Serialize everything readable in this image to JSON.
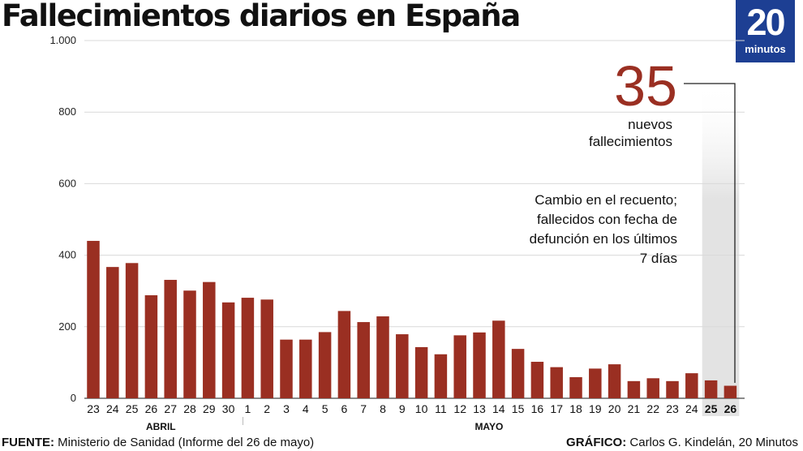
{
  "title": "Fallecimientos diarios en España",
  "logo": {
    "number": "20",
    "word": "minutos"
  },
  "colors": {
    "bar": "#9a2f22",
    "highlight_band": "#e6e6e6",
    "logo_bg": "#1d3f93"
  },
  "chart_data": {
    "type": "bar",
    "title": "Fallecimientos diarios en España",
    "xlabel": "",
    "ylabel": "",
    "ylim": [
      0,
      1000
    ],
    "yticks": [
      0,
      200,
      400,
      600,
      800,
      1000
    ],
    "ytick_labels": [
      "0",
      "200",
      "400",
      "600",
      "800",
      "1.000"
    ],
    "grid": true,
    "categories": [
      "23",
      "24",
      "25",
      "26",
      "27",
      "28",
      "29",
      "30",
      "1",
      "2",
      "3",
      "4",
      "5",
      "6",
      "7",
      "8",
      "9",
      "10",
      "11",
      "12",
      "13",
      "14",
      "15",
      "16",
      "17",
      "18",
      "19",
      "20",
      "21",
      "22",
      "23",
      "24",
      "25",
      "26"
    ],
    "values": [
      440,
      367,
      378,
      288,
      331,
      301,
      325,
      268,
      281,
      276,
      164,
      164,
      185,
      244,
      213,
      229,
      179,
      143,
      123,
      176,
      184,
      217,
      138,
      102,
      87,
      59,
      83,
      95,
      48,
      56,
      48,
      70,
      50,
      35
    ],
    "bold_categories": [
      32,
      33
    ],
    "months": [
      {
        "label": "ABRIL",
        "start": 0,
        "end": 7
      },
      {
        "label": "MAYO",
        "start": 8,
        "end": 33
      }
    ],
    "annotations": {
      "highlight_value": "35",
      "highlight_text": [
        "nuevos",
        "fallecimientos"
      ],
      "note": [
        "Cambio en el recuento;",
        "fallecidos con fecha de",
        "defunción en los últimos",
        "7 días"
      ]
    }
  },
  "footer": {
    "source_label": "FUENTE:",
    "source_text": "Ministerio de Sanidad (Informe del 26 de mayo)",
    "credit_label": "GRÁFICO:",
    "credit_text": "Carlos G. Kindelán, 20 Minutos"
  }
}
